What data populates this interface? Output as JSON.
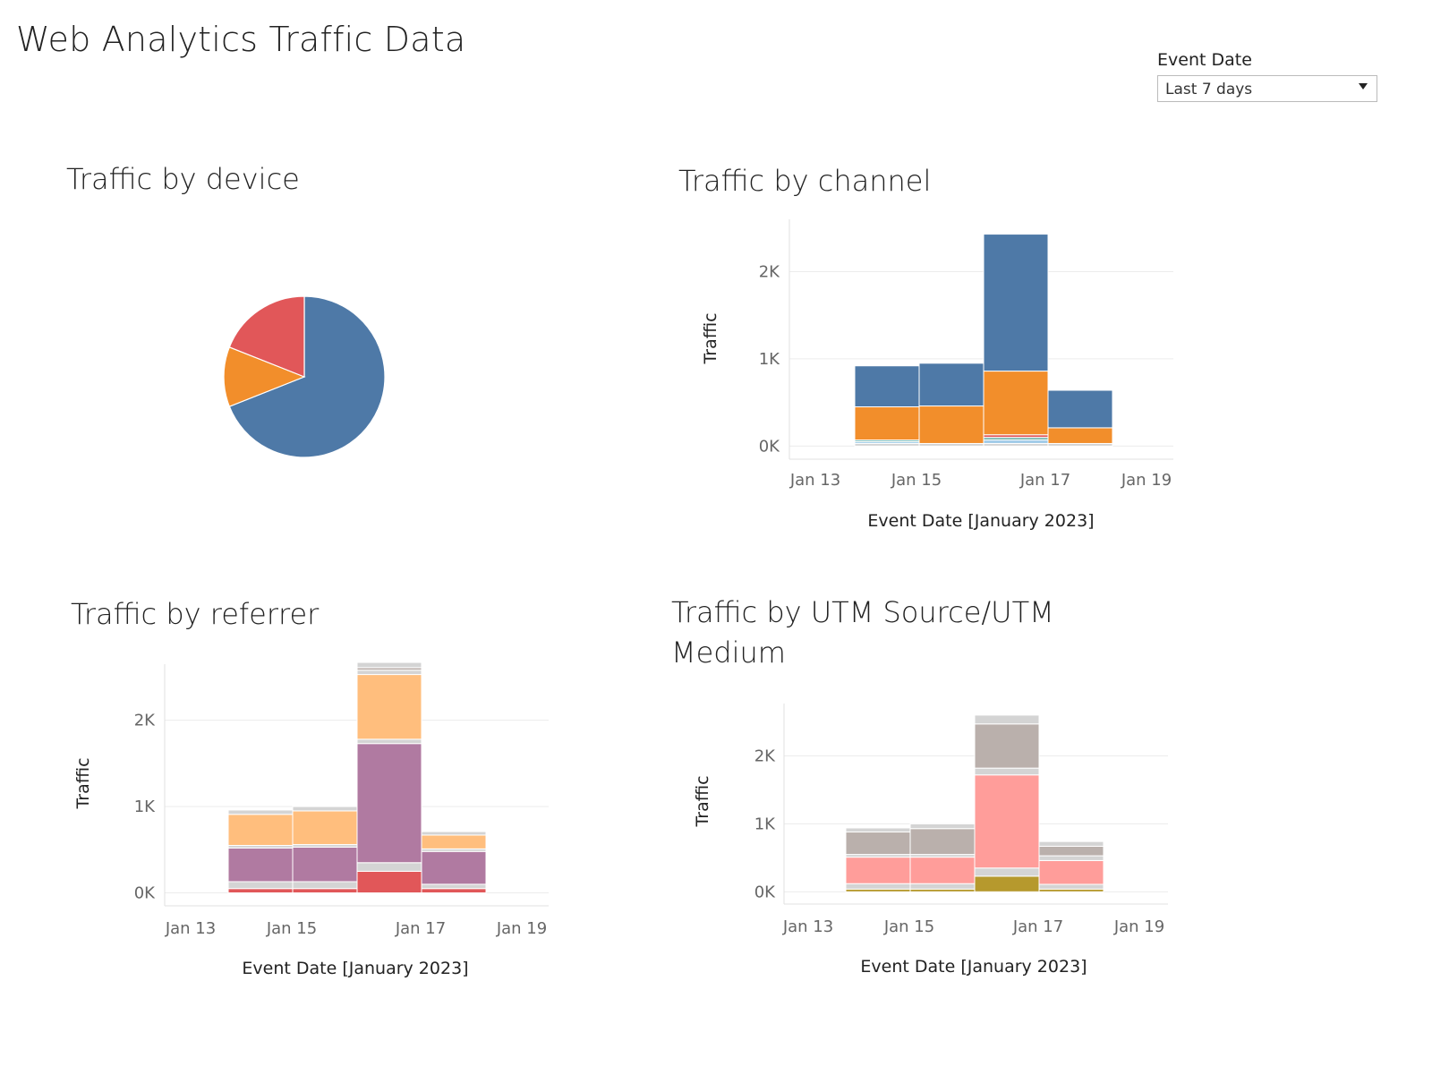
{
  "page": {
    "title": "Web Analytics Traffic Data"
  },
  "filter": {
    "label": "Event Date",
    "selected": "Last 7 days"
  },
  "chart_data": [
    {
      "id": "device",
      "type": "pie",
      "title": "Traffic by device",
      "slices": [
        {
          "value": 69,
          "color": "#4e79a7"
        },
        {
          "value": 12,
          "color": "#f28e2b"
        },
        {
          "value": 19,
          "color": "#e15759"
        }
      ]
    },
    {
      "id": "channel",
      "type": "bar",
      "stacked": true,
      "title": "Traffic by channel",
      "xlabel": "Event Date [January 2023]",
      "ylabel": "Traffic",
      "x_ticks": [
        "Jan 13",
        "Jan 15",
        "Jan 17",
        "Jan 19"
      ],
      "y_ticks": [
        "0K",
        "1K",
        "2K"
      ],
      "y_tick_values": [
        0,
        1000,
        2000
      ],
      "ylim": [
        -150,
        2600
      ],
      "categories": [
        "Jan 14",
        "Jan 15",
        "Jan 16",
        "Jan 17"
      ],
      "series": [
        {
          "color": "#d4d4d4",
          "values": [
            30,
            30,
            30,
            30
          ]
        },
        {
          "color": "#a0cbe8",
          "values": [
            20,
            0,
            40,
            0
          ]
        },
        {
          "color": "#76b7b2",
          "values": [
            20,
            0,
            30,
            0
          ]
        },
        {
          "color": "#e15759",
          "values": [
            0,
            0,
            30,
            0
          ]
        },
        {
          "color": "#f28e2b",
          "values": [
            380,
            430,
            730,
            180
          ]
        },
        {
          "color": "#4e79a7",
          "values": [
            470,
            490,
            1570,
            430
          ]
        }
      ]
    },
    {
      "id": "referrer",
      "type": "bar",
      "stacked": true,
      "title": "Traffic by referrer",
      "xlabel": "Event Date [January 2023]",
      "ylabel": "Traffic",
      "x_ticks": [
        "Jan 13",
        "Jan 15",
        "Jan 17",
        "Jan 19"
      ],
      "y_ticks": [
        "0K",
        "1K",
        "2K"
      ],
      "y_tick_values": [
        0,
        1000,
        2000
      ],
      "ylim": [
        -150,
        2650
      ],
      "categories": [
        "Jan 14",
        "Jan 15",
        "Jan 16",
        "Jan 17"
      ],
      "series": [
        {
          "color": "#e15759",
          "values": [
            50,
            50,
            250,
            50
          ]
        },
        {
          "color": "#d4d4d4",
          "values": [
            80,
            80,
            100,
            50
          ]
        },
        {
          "color": "#b07aa1",
          "values": [
            390,
            400,
            1380,
            380
          ]
        },
        {
          "color": "#d4d4d4",
          "values": [
            30,
            30,
            50,
            30
          ]
        },
        {
          "color": "#ffbe7d",
          "values": [
            360,
            390,
            750,
            160
          ]
        },
        {
          "color": "#d4d4d4",
          "values": [
            50,
            50,
            50,
            40
          ]
        },
        {
          "color": "#bab0ac",
          "values": [
            0,
            0,
            30,
            0
          ]
        },
        {
          "color": "#d4d4d4",
          "values": [
            0,
            0,
            60,
            0
          ]
        }
      ]
    },
    {
      "id": "utm",
      "type": "bar",
      "stacked": true,
      "title": "Traffic by UTM Source/UTM Medium",
      "xlabel": "Event Date [January 2023]",
      "ylabel": "Traffic",
      "x_ticks": [
        "Jan 13",
        "Jan 15",
        "Jan 17",
        "Jan 19"
      ],
      "y_ticks": [
        "0K",
        "1K",
        "2K"
      ],
      "y_tick_values": [
        0,
        1000,
        2000
      ],
      "ylim": [
        -180,
        2770
      ],
      "categories": [
        "Jan 14",
        "Jan 15",
        "Jan 16",
        "Jan 17"
      ],
      "series": [
        {
          "color": "#b6992d",
          "values": [
            40,
            40,
            230,
            40
          ]
        },
        {
          "color": "#d4d4d4",
          "values": [
            80,
            80,
            120,
            70
          ]
        },
        {
          "color": "#ff9d9a",
          "values": [
            390,
            390,
            1370,
            350
          ]
        },
        {
          "color": "#d4d4d4",
          "values": [
            40,
            40,
            100,
            70
          ]
        },
        {
          "color": "#bab0ac",
          "values": [
            330,
            380,
            650,
            140
          ]
        },
        {
          "color": "#d4d4d4",
          "values": [
            60,
            70,
            130,
            70
          ]
        }
      ]
    }
  ]
}
